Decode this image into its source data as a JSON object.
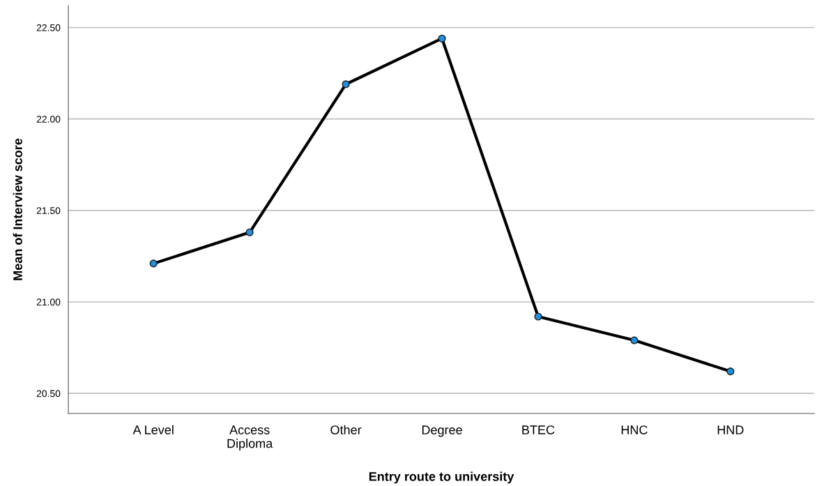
{
  "chart_data": {
    "type": "line",
    "xlabel": "Entry route to university",
    "ylabel": "Mean of Interview score",
    "categories": [
      "A Level",
      "Access\nDiploma",
      "Other",
      "Degree",
      "BTEC",
      "HNC",
      "HND"
    ],
    "series": [
      {
        "color": "#000000",
        "values": [
          21.21,
          21.38,
          22.19,
          22.44,
          20.92,
          20.79,
          20.62
        ]
      }
    ],
    "ylim": [
      20.39,
      22.62
    ],
    "yticks": [
      {
        "value": 20.5,
        "label": "20.50"
      },
      {
        "value": 21.0,
        "label": "21.00"
      },
      {
        "value": 21.5,
        "label": "21.50"
      },
      {
        "value": 22.0,
        "label": "22.00"
      },
      {
        "value": 22.5,
        "label": "22.50"
      }
    ],
    "grid": "y",
    "marker": "circle",
    "line_style": "solid"
  }
}
